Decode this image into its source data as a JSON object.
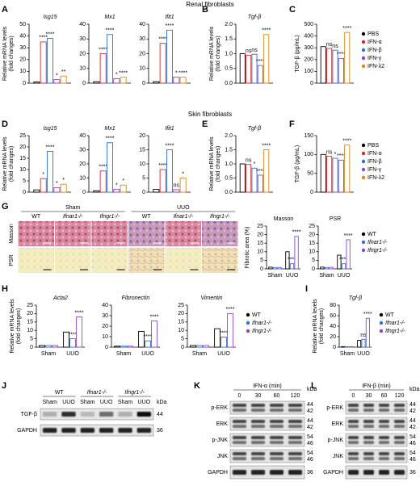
{
  "figure": {
    "row_titles": [
      "Renal fibroblasts",
      "Skin fibroblasts"
    ],
    "panel_labels": [
      "A",
      "B",
      "C",
      "D",
      "E",
      "F",
      "G",
      "H",
      "I",
      "J",
      "K",
      "L"
    ]
  },
  "chart_data": [
    {
      "type": "bar",
      "title": "Isg15",
      "italic_title": true,
      "ylabel": [
        "Relative mRNA levels",
        "(fold changes)"
      ],
      "ylim": [
        0,
        50
      ],
      "yticks": [
        0,
        10,
        20,
        30,
        40,
        50
      ],
      "categories": [
        null
      ],
      "series": [
        {
          "color": "#000000",
          "values": [
            1
          ]
        },
        {
          "color": "#d62728",
          "values": [
            35
          ],
          "significance": [
            "****"
          ]
        },
        {
          "color": "#2f6fd8",
          "values": [
            38
          ],
          "significance": [
            "****"
          ]
        },
        {
          "color": "#8e44c9",
          "values": [
            3
          ],
          "significance": [
            "*"
          ]
        },
        {
          "color": "#d9891a",
          "values": [
            6
          ],
          "significance": [
            "**"
          ]
        }
      ]
    },
    {
      "type": "bar",
      "title": "Mx1",
      "italic_title": true,
      "ylim": [
        0,
        40
      ],
      "yticks": [
        0,
        10,
        20,
        30,
        40
      ],
      "categories": [
        null
      ],
      "series": [
        {
          "color": "#000000",
          "values": [
            1
          ]
        },
        {
          "color": "#d62728",
          "values": [
            20
          ],
          "significance": [
            "****"
          ]
        },
        {
          "color": "#2f6fd8",
          "values": [
            33
          ],
          "significance": [
            "****"
          ]
        },
        {
          "color": "#8e44c9",
          "values": [
            3
          ],
          "significance": [
            "*"
          ]
        },
        {
          "color": "#d9891a",
          "values": [
            4
          ],
          "significance": [
            "****"
          ]
        }
      ]
    },
    {
      "type": "bar",
      "title": "Ifit1",
      "italic_title": true,
      "ylim": [
        0,
        40
      ],
      "yticks": [
        0,
        10,
        20,
        30,
        40
      ],
      "categories": [
        null
      ],
      "series": [
        {
          "color": "#000000",
          "values": [
            1
          ]
        },
        {
          "color": "#d62728",
          "values": [
            27
          ],
          "significance": [
            "****"
          ]
        },
        {
          "color": "#2f6fd8",
          "values": [
            36
          ],
          "significance": [
            "****"
          ]
        },
        {
          "color": "#8e44c9",
          "values": [
            4
          ],
          "significance": [
            "*"
          ]
        },
        {
          "color": "#d9891a",
          "values": [
            4
          ],
          "significance": [
            "****"
          ]
        }
      ]
    },
    {
      "type": "bar",
      "title": "Tgf-β",
      "italic_title": true,
      "ylabel": [
        "Relative mRNA levels",
        "(fold changes)"
      ],
      "ylim": [
        0,
        2
      ],
      "yticks": [
        {
          "value": 0,
          "label": "0.0"
        },
        0.5,
        {
          "value": 1,
          "label": "1.0"
        },
        1.5,
        {
          "value": 2,
          "label": "2.0"
        }
      ],
      "categories": [
        null
      ],
      "series": [
        {
          "color": "#000000",
          "values": [
            1
          ]
        },
        {
          "color": "#d62728",
          "values": [
            0.95
          ],
          "significance": [
            "ns"
          ]
        },
        {
          "color": "#2f6fd8",
          "values": [
            0.98
          ],
          "significance": [
            "ns"
          ]
        },
        {
          "color": "#8e44c9",
          "values": [
            0.6
          ],
          "significance": [
            "****"
          ]
        },
        {
          "color": "#d9891a",
          "values": [
            1.65
          ],
          "significance": [
            "****"
          ]
        }
      ]
    },
    {
      "type": "bar",
      "ylabel": "TGF-β (pg/mL)",
      "ylim": [
        0,
        500
      ],
      "yticks": [
        0,
        100,
        200,
        300,
        400,
        500
      ],
      "categories": [
        null
      ],
      "legend": true,
      "series": [
        {
          "name": "PBS",
          "color": "#000000",
          "values": [
            310
          ]
        },
        {
          "name": "IFN-α",
          "color": "#d62728",
          "values": [
            295
          ],
          "significance": [
            "ns"
          ]
        },
        {
          "name": "IFN-β",
          "color": "#2f6fd8",
          "values": [
            280
          ],
          "significance": [
            "ns"
          ]
        },
        {
          "name": "IFN-γ",
          "color": "#8e44c9",
          "values": [
            210
          ],
          "significance": [
            "****"
          ]
        },
        {
          "name": "IFN-λ2",
          "color": "#d9891a",
          "values": [
            430
          ],
          "significance": [
            "****"
          ]
        }
      ]
    },
    {
      "type": "bar",
      "title": "Isg15",
      "italic_title": true,
      "ylabel": [
        "Relative mRNA levels",
        "(fold changes)"
      ],
      "ylim": [
        0,
        25
      ],
      "yticks": [
        0,
        5,
        10,
        15,
        20,
        25
      ],
      "categories": [
        null
      ],
      "series": [
        {
          "color": "#000000",
          "values": [
            1
          ]
        },
        {
          "color": "#d62728",
          "values": [
            6
          ],
          "significance": [
            "*"
          ]
        },
        {
          "color": "#2f6fd8",
          "values": [
            18
          ],
          "significance": [
            "****"
          ]
        },
        {
          "color": "#8e44c9",
          "values": [
            2
          ],
          "significance": [
            "*"
          ]
        },
        {
          "color": "#d9891a",
          "values": [
            3.5
          ],
          "significance": [
            "*"
          ]
        }
      ]
    },
    {
      "type": "bar",
      "title": "Mx1",
      "italic_title": true,
      "ylim": [
        0,
        40
      ],
      "yticks": [
        0,
        10,
        20,
        30,
        40
      ],
      "categories": [
        null
      ],
      "series": [
        {
          "color": "#000000",
          "values": [
            1
          ]
        },
        {
          "color": "#d62728",
          "values": [
            15
          ],
          "significance": [
            "****"
          ]
        },
        {
          "color": "#2f6fd8",
          "values": [
            35
          ],
          "significance": [
            "****"
          ]
        },
        {
          "color": "#8e44c9",
          "values": [
            2
          ],
          "significance": [
            "*"
          ]
        },
        {
          "color": "#d9891a",
          "values": [
            5
          ],
          "significance": [
            "*"
          ]
        }
      ]
    },
    {
      "type": "bar",
      "title": "Ifit1",
      "italic_title": true,
      "ylim": [
        0,
        20
      ],
      "yticks": [
        0,
        5,
        10,
        15,
        20
      ],
      "categories": [
        null
      ],
      "series": [
        {
          "color": "#000000",
          "values": [
            1
          ]
        },
        {
          "color": "#d62728",
          "values": [
            8
          ],
          "significance": [
            "****"
          ]
        },
        {
          "color": "#2f6fd8",
          "values": [
            15
          ],
          "significance": [
            "****"
          ]
        },
        {
          "color": "#8e44c9",
          "values": [
            0.9
          ],
          "significance": [
            "ns"
          ]
        },
        {
          "color": "#d9891a",
          "values": [
            5
          ],
          "significance": [
            "*"
          ]
        }
      ]
    },
    {
      "type": "bar",
      "title": "Tgf-β",
      "italic_title": true,
      "ylabel": [
        "Relative mRNA levels",
        "(fold changes)"
      ],
      "ylim": [
        0,
        2
      ],
      "yticks": [
        {
          "value": 0,
          "label": "0.0"
        },
        0.5,
        {
          "value": 1,
          "label": "1.0"
        },
        1.5,
        {
          "value": 2,
          "label": "2.0"
        }
      ],
      "categories": [
        null
      ],
      "series": [
        {
          "color": "#000000",
          "values": [
            1
          ]
        },
        {
          "color": "#d62728",
          "values": [
            0.98
          ],
          "significance": [
            "ns"
          ]
        },
        {
          "color": "#2f6fd8",
          "values": [
            0.85
          ],
          "significance": [
            "*"
          ]
        },
        {
          "color": "#8e44c9",
          "values": [
            0.6
          ],
          "significance": [
            "****"
          ]
        },
        {
          "color": "#d9891a",
          "values": [
            1.5
          ],
          "significance": [
            "****"
          ]
        }
      ]
    },
    {
      "type": "bar",
      "ylabel": "TGF-β (pg/mL)",
      "ylim": [
        0,
        150
      ],
      "yticks": [
        0,
        50,
        100,
        150
      ],
      "categories": [
        null
      ],
      "legend": true,
      "series": [
        {
          "name": "PBS",
          "color": "#000000",
          "values": [
            100
          ]
        },
        {
          "name": "IFN-α",
          "color": "#d62728",
          "values": [
            95
          ],
          "significance": [
            "ns"
          ]
        },
        {
          "name": "IFN-β",
          "color": "#2f6fd8",
          "values": [
            90
          ],
          "significance": [
            "*"
          ]
        },
        {
          "name": "IFN-γ",
          "color": "#8e44c9",
          "values": [
            85
          ],
          "significance": [
            "****"
          ]
        },
        {
          "name": "IFN-λ2",
          "color": "#d9891a",
          "values": [
            125
          ],
          "significance": [
            "****"
          ]
        }
      ]
    },
    {
      "type": "bar",
      "title": "Masson",
      "ylabel": "Fibrotic area (%)",
      "ylim": [
        0,
        25
      ],
      "yticks": [
        0,
        5,
        10,
        15,
        20,
        25
      ],
      "categories": [
        "Sham",
        "UUO"
      ],
      "series": [
        {
          "color": "#000000",
          "values": [
            1,
            10
          ]
        },
        {
          "color": "#2f6fd8",
          "values": [
            0.8,
            3
          ],
          "significance": [
            null,
            "****"
          ]
        },
        {
          "color": "#8e44c9",
          "values": [
            0.8,
            19
          ],
          "significance": [
            null,
            "****"
          ]
        }
      ]
    },
    {
      "type": "bar",
      "title": "PSR",
      "ylim": [
        0,
        25
      ],
      "yticks": [
        0,
        5,
        10,
        15,
        20,
        25
      ],
      "categories": [
        "Sham",
        "UUO"
      ],
      "legend": true,
      "series": [
        {
          "name": "WT",
          "color": "#000000",
          "values": [
            1,
            8
          ]
        },
        {
          "name": "Ifnar1-/-",
          "color": "#2f6fd8",
          "values": [
            0.8,
            3
          ],
          "significance": [
            null,
            "****"
          ]
        },
        {
          "name": "Ifngr1-/-",
          "color": "#8e44c9",
          "values": [
            0.9,
            17
          ],
          "significance": [
            null,
            "****"
          ]
        }
      ]
    },
    {
      "type": "bar",
      "title": "Acta2",
      "italic_title": true,
      "ylabel": [
        "Relative mRNA levels",
        "(fold changes)"
      ],
      "ylim": [
        0,
        25
      ],
      "yticks": [
        0,
        5,
        10,
        15,
        20,
        25
      ],
      "categories": [
        "Sham",
        "UUO"
      ],
      "series": [
        {
          "color": "#000000",
          "values": [
            1,
            9
          ]
        },
        {
          "color": "#2f6fd8",
          "values": [
            1,
            5
          ],
          "significance": [
            null,
            "****"
          ]
        },
        {
          "color": "#8e44c9",
          "values": [
            1,
            18
          ],
          "significance": [
            null,
            "****"
          ]
        }
      ]
    },
    {
      "type": "bar",
      "title": "Fibronectin",
      "italic_title": true,
      "ylim": [
        0,
        40
      ],
      "yticks": [
        0,
        10,
        20,
        30,
        40
      ],
      "categories": [
        "Sham",
        "UUO"
      ],
      "series": [
        {
          "color": "#000000",
          "values": [
            1,
            15
          ]
        },
        {
          "color": "#2f6fd8",
          "values": [
            1,
            6
          ],
          "significance": [
            null,
            "****"
          ]
        },
        {
          "color": "#8e44c9",
          "values": [
            1,
            25
          ],
          "significance": [
            null,
            "****"
          ]
        }
      ]
    },
    {
      "type": "bar",
      "title": "Vimentin",
      "italic_title": true,
      "ylim": [
        0,
        25
      ],
      "yticks": [
        0,
        5,
        10,
        15,
        20,
        25
      ],
      "categories": [
        "Sham",
        "UUO"
      ],
      "legend": true,
      "series": [
        {
          "name": "WT",
          "color": "#000000",
          "values": [
            1,
            11
          ]
        },
        {
          "name": "Ifnar1-/-",
          "color": "#2f6fd8",
          "values": [
            1,
            6
          ],
          "significance": [
            null,
            "****"
          ]
        },
        {
          "name": "Ifngr1-/-",
          "color": "#8e44c9",
          "values": [
            1,
            20
          ],
          "significance": [
            null,
            "****"
          ]
        }
      ]
    },
    {
      "type": "bar",
      "title": "Tgf-β",
      "italic_title": true,
      "ylabel": [
        "Relative mRNA levels",
        "(fold changes)"
      ],
      "ylim": [
        0,
        80
      ],
      "yticks": [
        0,
        20,
        40,
        60,
        80
      ],
      "categories": [
        "Sham",
        "UUO"
      ],
      "legend": true,
      "series": [
        {
          "name": "WT",
          "color": "#000000",
          "values": [
            1,
            13
          ]
        },
        {
          "name": "Ifnar1-/-",
          "color": "#2f6fd8",
          "values": [
            1,
            15
          ],
          "significance": [
            null,
            "ns"
          ]
        },
        {
          "name": "Ifngr1-/-",
          "color": "#8e44c9",
          "values": [
            1,
            55
          ],
          "significance": [
            null,
            "****"
          ]
        }
      ]
    }
  ],
  "histology": {
    "groups": [
      "Sham",
      "UUO"
    ],
    "genotypes": [
      "WT",
      "Ifnar1-/-",
      "Ifngr1-/-",
      "WT",
      "Ifnar1-/-",
      "Ifngr1-/-"
    ],
    "stains": [
      "Masson",
      "PSR"
    ]
  },
  "blots": [
    {
      "groups": [
        "WT",
        "Ifnar1-/-",
        "Ifngr1-/-"
      ],
      "lanes": [
        "Sham",
        "UUO",
        "Sham",
        "UUO",
        "Sham",
        "UUO"
      ],
      "unit": "kDa",
      "rows": [
        {
          "name": "TGF-β",
          "kda": [
            44
          ]
        },
        {
          "name": "GAPDH",
          "kda": [
            36
          ]
        }
      ]
    },
    {
      "treatment": "IFN-α (min)",
      "lanes": [
        0,
        30,
        60,
        120
      ],
      "unit": "kDa",
      "rows": [
        {
          "name": "p-ERK",
          "kda": [
            44,
            42
          ]
        },
        {
          "name": "ERK",
          "kda": [
            44,
            42
          ]
        },
        {
          "name": "p-JNK",
          "kda": [
            54,
            46
          ]
        },
        {
          "name": "JNK",
          "kda": [
            54,
            46
          ]
        },
        {
          "name": "GAPDH",
          "kda": [
            36
          ]
        }
      ]
    },
    {
      "treatment": "IFN-β (min)",
      "lanes": [
        0,
        30,
        60,
        120
      ],
      "unit": "kDa",
      "rows": [
        {
          "name": "p-ERK",
          "kda": [
            44,
            42
          ]
        },
        {
          "name": "ERK",
          "kda": [
            44,
            42
          ]
        },
        {
          "name": "p-JNK",
          "kda": [
            54,
            46
          ]
        },
        {
          "name": "JNK",
          "kda": [
            54,
            46
          ]
        },
        {
          "name": "GAPDH",
          "kda": [
            36
          ]
        }
      ]
    }
  ]
}
